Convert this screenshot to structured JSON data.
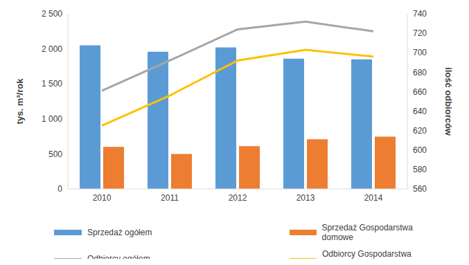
{
  "chart_data": {
    "type": "bar",
    "categories": [
      "2010",
      "2011",
      "2012",
      "2013",
      "2014"
    ],
    "ylabel": "tys. m³/rok",
    "y2label": "ilość odbiorców",
    "ylim": [
      0,
      2500
    ],
    "yticks": [
      0,
      500,
      {
        "value": 1000,
        "label": "1 000"
      },
      {
        "value": 1500,
        "label": "1 500"
      },
      {
        "value": 2000,
        "label": "2 000"
      },
      {
        "value": 2500,
        "label": "2 500"
      }
    ],
    "y2lim": [
      560,
      740
    ],
    "y2ticks": [
      560,
      580,
      600,
      620,
      640,
      660,
      680,
      700,
      720,
      740
    ],
    "grid": false,
    "legend": "bottom",
    "series": [
      {
        "name": "Sprzedaż ogółem",
        "type": "bar",
        "color": "#5b9bd5",
        "values": [
          2050,
          1960,
          2020,
          1860,
          1850
        ]
      },
      {
        "name": "Sprzedaż Gospodarstwa domowe",
        "type": "bar",
        "color": "#ed7d31",
        "values": [
          600,
          500,
          610,
          710,
          745
        ]
      },
      {
        "name": "Odbiorcy ogółem",
        "type": "line",
        "axis": "y2",
        "color": "#a5a5a5",
        "values": [
          661,
          692,
          724,
          732,
          722
        ]
      },
      {
        "name": "Odbiorcy Gospodarstwa domowe",
        "type": "line",
        "axis": "y2",
        "color": "#ffc000",
        "values": [
          625,
          656,
          692,
          703,
          696
        ]
      }
    ]
  }
}
